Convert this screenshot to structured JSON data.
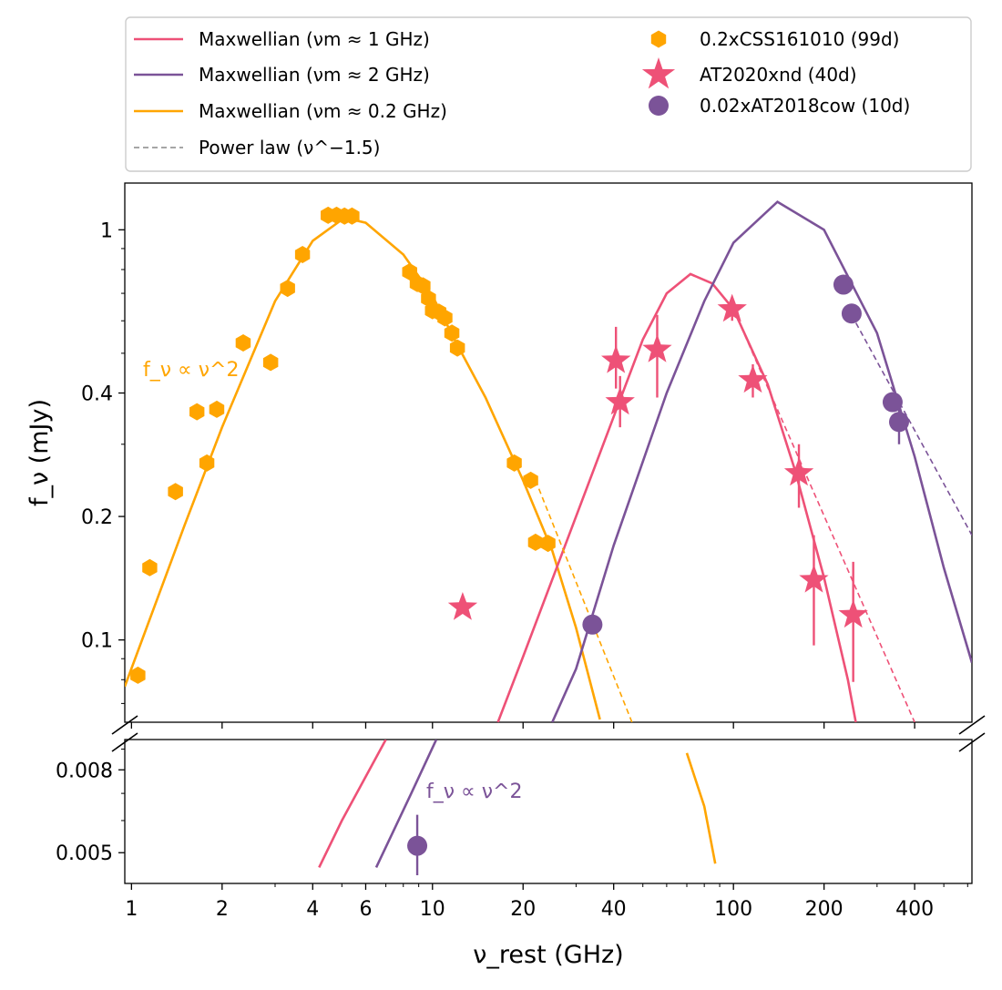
{
  "chart_data": {
    "type": "scatter",
    "x_scale": "log",
    "y_scale": "log",
    "xlabel": "ν_rest (GHz)",
    "ylabel": "f_ν (mJy)",
    "xlim": [
      0.95,
      620
    ],
    "upper_ylim": [
      0.063,
      1.3
    ],
    "lower_ylim": [
      0.0042,
      0.0095
    ],
    "x_ticks": [
      1,
      2,
      4,
      6,
      10,
      20,
      40,
      100,
      200,
      400
    ],
    "x_tick_labels": [
      "1",
      "2",
      "4",
      "6",
      "10",
      "20",
      "40",
      "100",
      "200",
      "400"
    ],
    "upper_y_ticks": [
      0.1,
      0.2,
      0.4,
      1
    ],
    "upper_y_tick_labels": [
      "0.1",
      "0.2",
      "0.4",
      "1"
    ],
    "lower_y_ticks": [
      0.005,
      0.008
    ],
    "lower_y_tick_labels": [
      "0.005",
      "0.008"
    ],
    "broken_axis": true,
    "legend": {
      "placement": "above plot, two columns",
      "entries": [
        {
          "kind": "line",
          "color": "#EE5177",
          "label": "Maxwellian (νm ≈ 1 GHz)"
        },
        {
          "kind": "line",
          "color": "#7B5398",
          "label": "Maxwellian (νm ≈ 2 GHz)"
        },
        {
          "kind": "line",
          "color": "#FFA500",
          "label": "Maxwellian (νm ≈ 0.2 GHz)"
        },
        {
          "kind": "dashed",
          "color": "#888888",
          "label": "Power law (ν^−1.5)"
        },
        {
          "kind": "hexagon",
          "color": "#FFA500",
          "label": "0.2xCSS161010 (99d)"
        },
        {
          "kind": "star",
          "color": "#EE5177",
          "label": "AT2020xnd (40d)"
        },
        {
          "kind": "circle",
          "color": "#7B5398",
          "label": "0.02xAT2018cow (10d)"
        }
      ]
    },
    "annotations": [
      {
        "text": "f_ν ∝ ν^2",
        "color": "#FFA500",
        "panel": "upper",
        "x": 1.05,
        "y": 0.52
      },
      {
        "text": "f_ν ∝ ν^2",
        "color": "#7B5398",
        "panel": "lower",
        "x": 9.2,
        "y": 0.0073
      }
    ],
    "series": [
      {
        "name": "0.2xCSS161010 (99d)",
        "marker": "hexagon",
        "color": "#FFA500",
        "points": [
          [
            1.05,
            0.082
          ],
          [
            1.15,
            0.15
          ],
          [
            1.4,
            0.23
          ],
          [
            1.65,
            0.36
          ],
          [
            1.78,
            0.27
          ],
          [
            1.92,
            0.365
          ],
          [
            2.35,
            0.53
          ],
          [
            2.9,
            0.475
          ],
          [
            3.3,
            0.72
          ],
          [
            3.7,
            0.87
          ],
          [
            4.5,
            1.085
          ],
          [
            4.8,
            1.085
          ],
          [
            5.1,
            1.08
          ],
          [
            5.4,
            1.08
          ],
          [
            8.4,
            0.79
          ],
          [
            8.9,
            0.74
          ],
          [
            9.3,
            0.73
          ],
          [
            9.7,
            0.68
          ],
          [
            10.0,
            0.635
          ],
          [
            10.5,
            0.63
          ],
          [
            11.0,
            0.61
          ],
          [
            11.6,
            0.56
          ],
          [
            12.1,
            0.515
          ],
          [
            18.7,
            0.27
          ],
          [
            21.2,
            0.245
          ],
          [
            22.0,
            0.173
          ],
          [
            24.2,
            0.172
          ]
        ]
      },
      {
        "name": "AT2020xnd (40d)",
        "marker": "star",
        "color": "#EE5177",
        "points": [
          {
            "x": 12.6,
            "y": 0.12
          },
          {
            "x": 40.7,
            "y": 0.48,
            "err": [
              0.41,
              0.58
            ]
          },
          {
            "x": 42.0,
            "y": 0.38,
            "err": [
              0.33,
              0.44
            ]
          },
          {
            "x": 55.8,
            "y": 0.51,
            "err": [
              0.39,
              0.62
            ]
          },
          {
            "x": 99.0,
            "y": 0.64,
            "err": [
              0.6,
              0.68
            ]
          },
          {
            "x": 116.0,
            "y": 0.43,
            "err": [
              0.39,
              0.47
            ]
          },
          {
            "x": 165.0,
            "y": 0.255,
            "err": [
              0.21,
              0.3
            ]
          },
          {
            "x": 185.0,
            "y": 0.14,
            "err": [
              0.097,
              0.18
            ]
          },
          {
            "x": 250.0,
            "y": 0.115,
            "err": [
              0.079,
              0.155
            ]
          }
        ]
      },
      {
        "name": "0.02xAT2018cow (10d)",
        "marker": "circle",
        "color": "#7B5398",
        "points": [
          {
            "x": 34.0,
            "y": 0.109
          },
          {
            "x": 232.0,
            "y": 0.735
          },
          {
            "x": 247.0,
            "y": 0.625
          },
          {
            "x": 338.0,
            "y": 0.38
          },
          {
            "x": 355.0,
            "y": 0.34,
            "err": [
              0.3,
              0.38
            ]
          },
          {
            "x": 8.9,
            "y": 0.0052,
            "err": [
              0.0044,
              0.0062
            ],
            "panel": "lower"
          }
        ]
      }
    ],
    "model_curves": [
      {
        "name": "Maxwellian (νm ≈ 0.2 GHz)",
        "color": "#FFA500",
        "peak_x": 5.1,
        "peak_y": 1.07,
        "points": [
          [
            0.95,
            0.077
          ],
          [
            1.5,
            0.19
          ],
          [
            2,
            0.33
          ],
          [
            3,
            0.67
          ],
          [
            4,
            0.94
          ],
          [
            5.1,
            1.07
          ],
          [
            6,
            1.04
          ],
          [
            8,
            0.87
          ],
          [
            10,
            0.69
          ],
          [
            12,
            0.53
          ],
          [
            15,
            0.39
          ],
          [
            20,
            0.245
          ],
          [
            25,
            0.165
          ],
          [
            30,
            0.107
          ],
          [
            36,
            0.064
          ]
        ],
        "lower_points": [
          [
            70,
            0.0088
          ],
          [
            80,
            0.0065
          ],
          [
            87,
            0.0047
          ]
        ]
      },
      {
        "name": "Maxwellian (νm ≈ 1 GHz)",
        "color": "#EE5177",
        "peak_x": 72,
        "peak_y": 0.78,
        "points": [
          [
            16.5,
            0.063
          ],
          [
            20,
            0.091
          ],
          [
            30,
            0.2
          ],
          [
            40,
            0.35
          ],
          [
            50,
            0.54
          ],
          [
            60,
            0.7
          ],
          [
            72,
            0.78
          ],
          [
            85,
            0.74
          ],
          [
            100,
            0.64
          ],
          [
            130,
            0.42
          ],
          [
            160,
            0.26
          ],
          [
            200,
            0.142
          ],
          [
            240,
            0.08
          ],
          [
            255,
            0.063
          ]
        ],
        "lower_points": [
          [
            4.2,
            0.0046
          ],
          [
            5,
            0.006
          ],
          [
            7,
            0.0095
          ]
        ]
      },
      {
        "name": "Maxwellian (νm ≈ 2 GHz)",
        "color": "#7B5398",
        "peak_x": 140,
        "peak_y": 1.17,
        "points": [
          [
            25,
            0.063
          ],
          [
            30,
            0.085
          ],
          [
            40,
            0.17
          ],
          [
            60,
            0.4
          ],
          [
            80,
            0.67
          ],
          [
            100,
            0.93
          ],
          [
            140,
            1.17
          ],
          [
            200,
            1.0
          ],
          [
            300,
            0.56
          ],
          [
            400,
            0.28
          ],
          [
            500,
            0.15
          ],
          [
            620,
            0.088
          ]
        ],
        "lower_points": [
          [
            6.5,
            0.0046
          ],
          [
            8.5,
            0.007
          ],
          [
            10.3,
            0.0095
          ]
        ]
      },
      {
        "name": "Power law (ν^−1.5) · 0.2xCSS161010",
        "color": "#FFA500",
        "dashed": true,
        "points": [
          [
            22,
            0.245
          ],
          [
            46,
            0.063
          ]
        ]
      },
      {
        "name": "Power law (ν^−1.5) · AT2020xnd",
        "color": "#EE5177",
        "dashed": true,
        "points": [
          [
            100,
            0.64
          ],
          [
            400,
            0.063
          ]
        ]
      },
      {
        "name": "Power law (ν^−1.5) · AT2018cow",
        "color": "#7B5398",
        "dashed": true,
        "points": [
          [
            247,
            0.62
          ],
          [
            620,
            0.18
          ]
        ]
      }
    ]
  }
}
